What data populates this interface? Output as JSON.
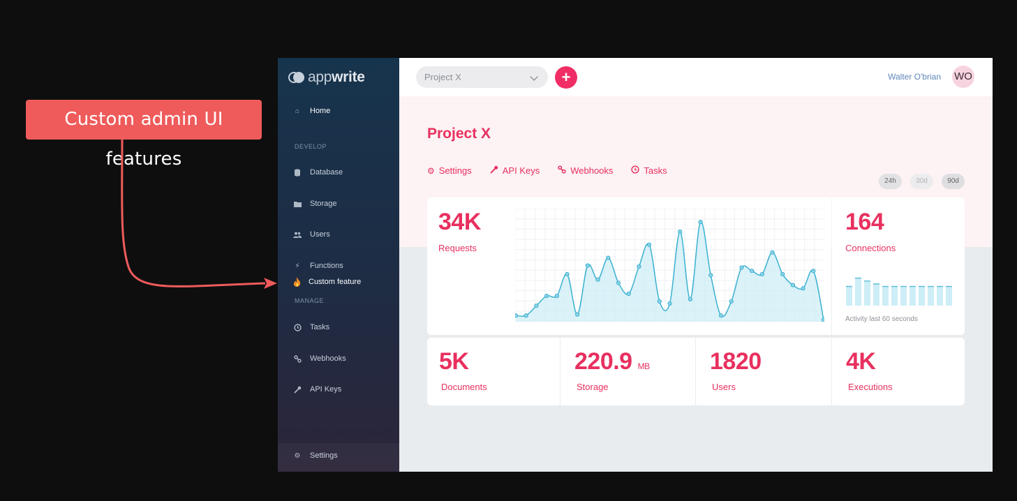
{
  "callout": {
    "text": "Custom admin UI features"
  },
  "sidebar": {
    "logo": {
      "light": "app",
      "bold": "write"
    },
    "home": "Home",
    "develop_heading": "DEVELOP",
    "items_develop": [
      "Database",
      "Storage",
      "Users",
      "Functions"
    ],
    "custom_item": "Custom feature",
    "manage_heading": "MANAGE",
    "items_manage": [
      "Tasks",
      "Webhooks",
      "API Keys"
    ],
    "settings": "Settings"
  },
  "topbar": {
    "project_select": "Project X",
    "add_symbol": "+",
    "user_name": "Walter O'brian",
    "avatar_initials": "WO"
  },
  "header": {
    "title": "Project X",
    "tabs": [
      "Settings",
      "API Keys",
      "Webhooks",
      "Tasks"
    ],
    "ranges": [
      "24h",
      "30d",
      "90d"
    ]
  },
  "stats": {
    "requests": {
      "value": "34K",
      "label": "Requests"
    },
    "connections": {
      "value": "164",
      "label": "Connections",
      "caption": "Activity last 60 seconds"
    },
    "documents": {
      "value": "5K",
      "label": "Documents"
    },
    "storage": {
      "value": "220.9",
      "unit": "MB",
      "label": "Storage"
    },
    "users": {
      "value": "1820",
      "label": "Users"
    },
    "executions": {
      "value": "4K",
      "label": "Executions"
    }
  },
  "chart_data": [
    {
      "type": "area",
      "x": [
        1,
        2,
        3,
        4,
        5,
        6,
        7,
        8,
        9,
        10,
        11,
        12,
        13,
        14,
        15,
        16,
        17,
        18,
        19,
        20,
        21,
        22,
        23,
        24,
        25,
        26,
        27,
        28,
        29,
        30,
        31
      ],
      "values": [
        5,
        5,
        14,
        23,
        23,
        43,
        6,
        51,
        38,
        58,
        35,
        25,
        50,
        70,
        18,
        16,
        82,
        20,
        91,
        42,
        5,
        18,
        49,
        46,
        43,
        63,
        43,
        33,
        30,
        46,
        1
      ],
      "ylim": [
        0,
        100
      ]
    },
    {
      "type": "bar",
      "values": [
        47,
        67,
        60,
        53,
        47,
        47,
        47,
        47,
        47,
        47,
        47,
        47
      ],
      "ylim": [
        0,
        100
      ]
    }
  ],
  "colors": {
    "accent": "#f02e65",
    "chart_line": "#3bb1d1",
    "chart_fill": "#cdeef6"
  }
}
